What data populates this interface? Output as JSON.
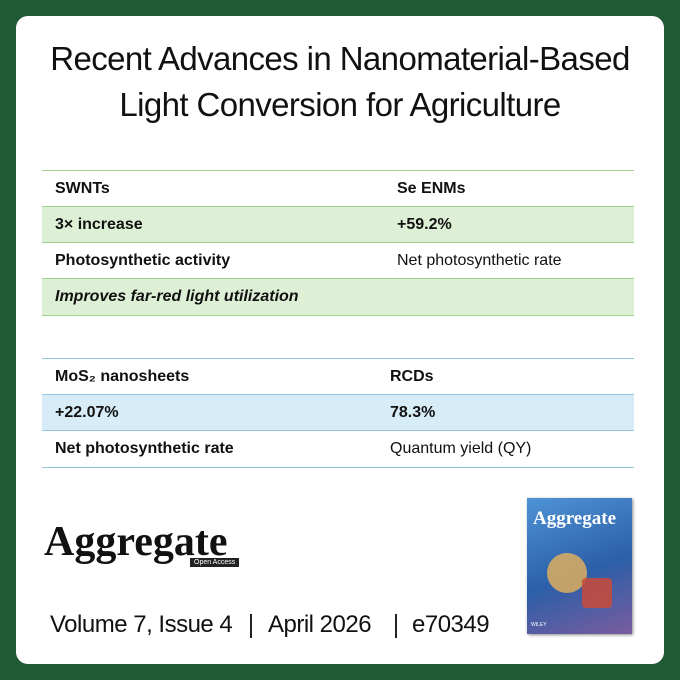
{
  "title": {
    "line1": "Recent Advances in Nanomaterial-Based",
    "line2": "Light Conversion for Agriculture"
  },
  "table1": {
    "rows": [
      [
        "SWNTs",
        "Se ENMs"
      ],
      [
        "3× increase",
        "+59.2%"
      ],
      [
        "Photosynthetic activity",
        "Net photosynthetic rate"
      ],
      [
        "Improves far-red light utilization"
      ]
    ]
  },
  "table2": {
    "rows": [
      [
        "MoS₂ nanosheets",
        "RCDs"
      ],
      [
        "+22.07%",
        "78.3%"
      ],
      [
        "Net photosynthetic rate",
        "Quantum yield (QY)"
      ]
    ]
  },
  "journal": {
    "name": "Aggregate",
    "badge": "Open Access"
  },
  "footer": {
    "volume": "Volume 7, Issue 4",
    "date": "April 2026",
    "article": "e70349"
  },
  "cover": {
    "title": "Aggregate",
    "publisher": "WILEY"
  }
}
